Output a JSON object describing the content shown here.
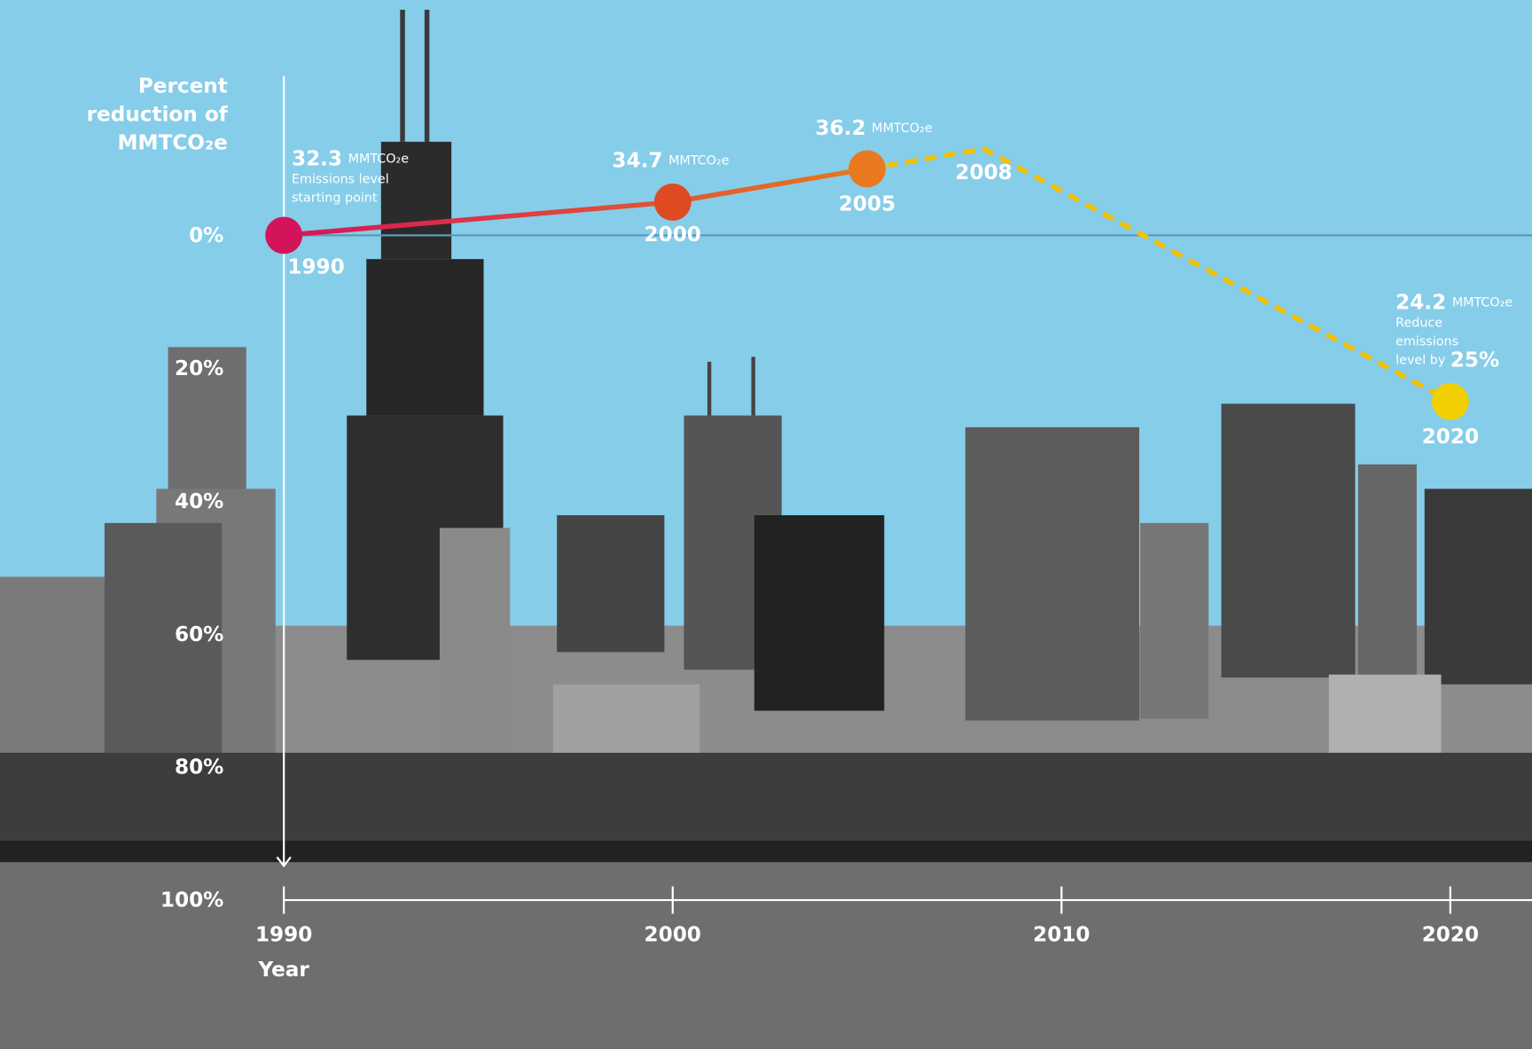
{
  "chart_data": {
    "type": "line",
    "y_axis_label": [
      "Percent",
      "reduction of",
      "MMTCO₂e"
    ],
    "x_axis_label": "Year",
    "x": [
      1990,
      2000,
      2005,
      2008,
      2020
    ],
    "series": [
      {
        "style": "solid",
        "values": [
          0,
          -5,
          -10,
          null,
          null
        ]
      },
      {
        "style": "dashed",
        "color": "#f2c200",
        "values": [
          null,
          null,
          -10,
          -13,
          25
        ]
      }
    ],
    "point_colors": [
      "#d4145a",
      "#de4a22",
      "#e8791e",
      null,
      "#f0d000"
    ],
    "emissions": [
      32.3,
      34.7,
      36.2,
      null,
      24.2
    ],
    "emissions_unit": "MMTCO₂e",
    "point_notes": [
      {
        "lines": [
          "Emissions level",
          "starting point"
        ]
      },
      null,
      null,
      null,
      {
        "lines": [
          "Reduce",
          "emissions",
          "level by"
        ],
        "highlight": "25%"
      }
    ],
    "xlim": [
      1982.7,
      2022.1
    ],
    "xticks": [
      1990,
      2000,
      2010,
      2020
    ],
    "ylim": [
      -35.4,
      122.4
    ],
    "y_inverted": true,
    "yticks": [
      {
        "value": 0,
        "label": "0%"
      },
      {
        "value": 20,
        "label": "20%"
      },
      {
        "value": 40,
        "label": "40%"
      },
      {
        "value": 60,
        "label": "60%"
      },
      {
        "value": 80,
        "label": "80%"
      },
      {
        "value": 100,
        "label": "100%"
      }
    ],
    "zero_line": true
  }
}
